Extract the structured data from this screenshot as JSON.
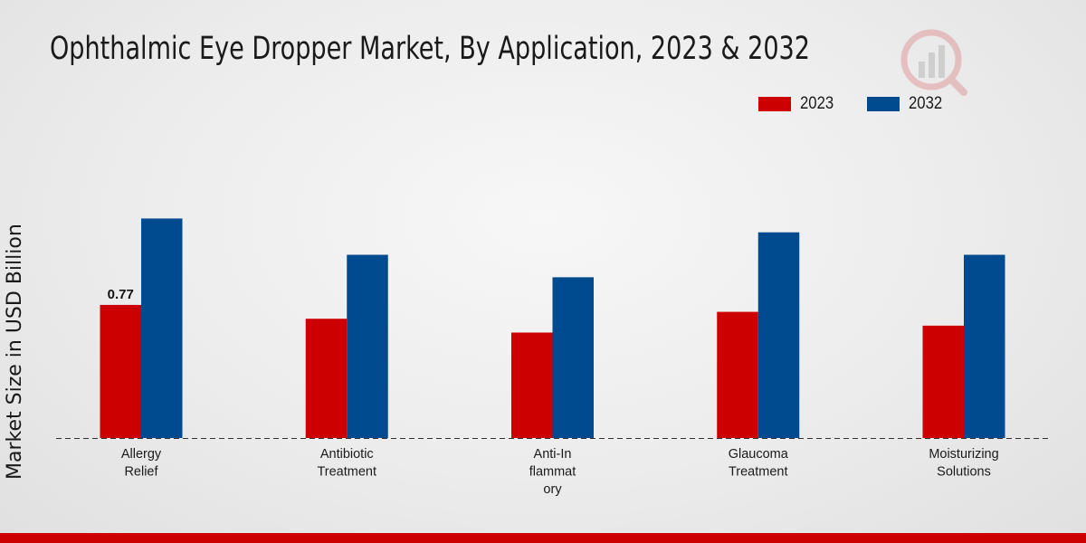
{
  "chart_data": {
    "type": "bar",
    "title": "Ophthalmic Eye Dropper Market, By Application, 2023 & 2032",
    "xlabel": "",
    "ylabel": "Market Size in USD Billion",
    "categories": [
      [
        "Allergy",
        "Relief"
      ],
      [
        "Antibiotic",
        "Treatment"
      ],
      [
        "Anti-In",
        "flammat",
        "ory"
      ],
      [
        "Glaucoma",
        "Treatment"
      ],
      [
        "Moisturizing",
        "Solutions"
      ]
    ],
    "series": [
      {
        "name": "2023",
        "color": "#cc0000",
        "values": [
          0.77,
          0.69,
          0.61,
          0.73,
          0.65
        ]
      },
      {
        "name": "2032",
        "color": "#004a8f",
        "values": [
          1.27,
          1.06,
          0.93,
          1.19,
          1.06
        ]
      }
    ],
    "data_labels": [
      {
        "series": 0,
        "index": 0,
        "text": "0.77"
      }
    ],
    "ylim": [
      0,
      2.0
    ],
    "grid": false,
    "legend_position": "top-right"
  }
}
